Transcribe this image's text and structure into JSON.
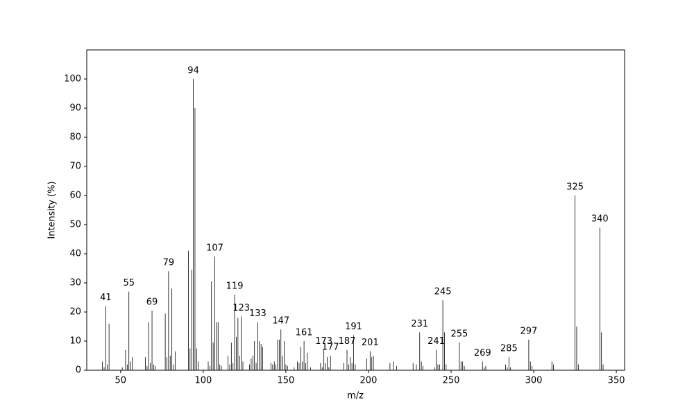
{
  "chart_data": {
    "type": "spectrum",
    "xlabel": "m/z",
    "ylabel": "Intensity (%)",
    "color": "#000000",
    "x": [
      39,
      40,
      41,
      42,
      43,
      51,
      53,
      54,
      55,
      56,
      57,
      65,
      66,
      67,
      68,
      69,
      70,
      71,
      77,
      78,
      79,
      80,
      81,
      82,
      83,
      91,
      92,
      93,
      94,
      95,
      96,
      97,
      103,
      104,
      105,
      106,
      107,
      108,
      109,
      110,
      111,
      115,
      116,
      117,
      118,
      119,
      120,
      121,
      122,
      123,
      124,
      128,
      129,
      130,
      131,
      132,
      133,
      134,
      135,
      136,
      141,
      142,
      143,
      144,
      145,
      146,
      147,
      148,
      149,
      150,
      151,
      155,
      157,
      158,
      159,
      160,
      161,
      162,
      163,
      165,
      171,
      172,
      173,
      174,
      175,
      176,
      177,
      185,
      187,
      188,
      189,
      190,
      191,
      192,
      199,
      201,
      202,
      203,
      213,
      215,
      217,
      227,
      229,
      231,
      232,
      233,
      240,
      241,
      242,
      243,
      245,
      246,
      247,
      255,
      256,
      257,
      258,
      269,
      270,
      271,
      283,
      284,
      285,
      286,
      297,
      298,
      299,
      311,
      312,
      325,
      326,
      327,
      340,
      341,
      342
    ],
    "values": [
      3,
      1,
      22,
      2,
      16,
      1,
      7,
      2,
      27,
      3,
      4.5,
      4.5,
      1.5,
      16.5,
      2.5,
      20.5,
      2,
      1.5,
      19.5,
      4.5,
      34,
      5,
      28,
      2,
      6.5,
      41,
      7.5,
      34.5,
      100,
      90,
      7.5,
      3,
      3,
      1.5,
      30.5,
      9.5,
      39,
      16.5,
      16.5,
      2,
      1.5,
      5,
      2,
      9.5,
      2.5,
      26,
      11.5,
      18,
      5,
      18.5,
      3,
      2,
      4,
      5,
      10,
      2.5,
      16.5,
      10,
      9,
      8,
      2.5,
      2,
      3,
      2,
      10.5,
      10.5,
      14,
      5,
      10,
      2,
      1.5,
      1,
      3,
      2.5,
      8,
      3,
      10,
      2.5,
      6,
      1,
      2.5,
      1,
      7,
      2.5,
      4.5,
      1,
      5,
      2.5,
      7,
      2,
      4.5,
      2.5,
      12,
      2,
      4,
      6.5,
      4.5,
      5,
      2.5,
      3,
      1.5,
      2.5,
      2,
      13,
      3,
      1.5,
      1,
      7,
      2,
      2,
      24,
      13,
      2,
      9.5,
      3,
      3,
      1.5,
      3,
      1,
      1.5,
      2,
      1,
      4.5,
      1,
      10.5,
      3,
      1.5,
      3,
      2,
      60,
      15,
      2,
      49,
      13,
      2
    ],
    "annotations": [
      {
        "x": 41
      },
      {
        "x": 55
      },
      {
        "x": 69
      },
      {
        "x": 79
      },
      {
        "x": 94
      },
      {
        "x": 107
      },
      {
        "x": 119
      },
      {
        "x": 123
      },
      {
        "x": 133
      },
      {
        "x": 147
      },
      {
        "x": 161
      },
      {
        "x": 173
      },
      {
        "x": 177
      },
      {
        "x": 187
      },
      {
        "x": 191
      },
      {
        "x": 201
      },
      {
        "x": 231
      },
      {
        "x": 241
      },
      {
        "x": 245
      },
      {
        "x": 255
      },
      {
        "x": 269
      },
      {
        "x": 285
      },
      {
        "x": 297
      },
      {
        "x": 325
      },
      {
        "x": 340
      }
    ],
    "xlim": [
      29.5,
      355
    ],
    "ylim": [
      0,
      110
    ],
    "xticks": [
      50,
      100,
      150,
      200,
      250,
      300,
      350
    ],
    "yticks": [
      0,
      10,
      20,
      30,
      40,
      50,
      60,
      70,
      80,
      90,
      100
    ]
  }
}
